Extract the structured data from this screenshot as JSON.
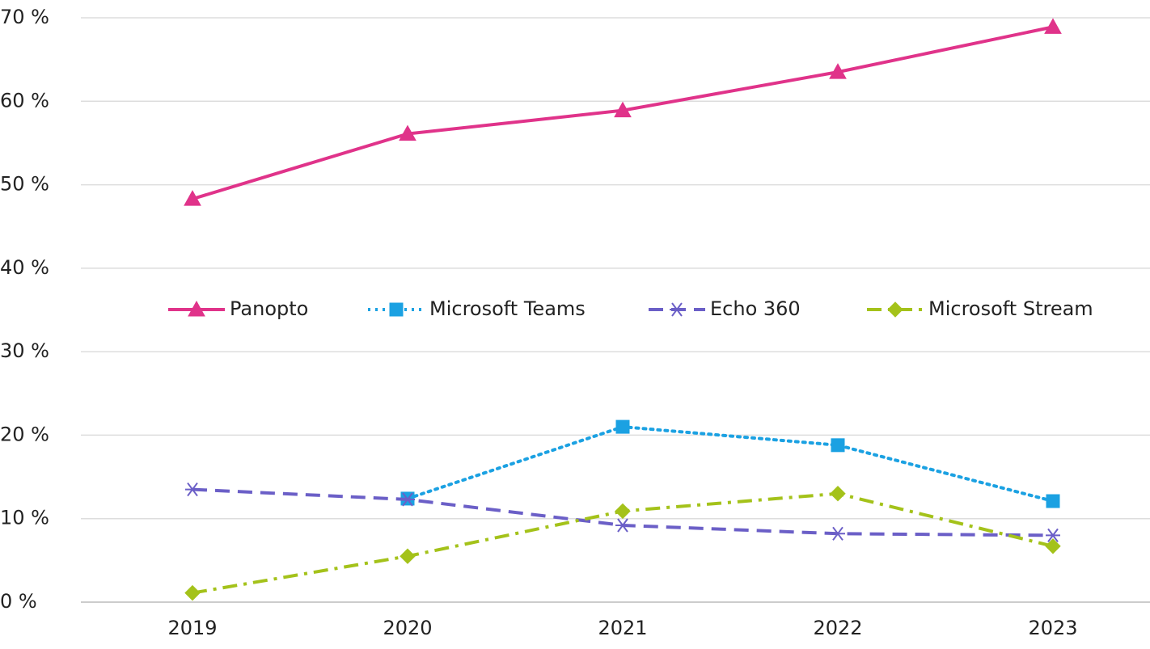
{
  "chart_data": {
    "type": "line",
    "categories": [
      "2019",
      "2020",
      "2021",
      "2022",
      "2023"
    ],
    "series": [
      {
        "name": "Panopto",
        "color": "#e0338a",
        "marker": "triangle",
        "line_style": "solid",
        "values": [
          48.3,
          56.1,
          58.9,
          63.5,
          68.9
        ]
      },
      {
        "name": "Microsoft Teams",
        "color": "#1ba1e2",
        "marker": "square",
        "line_style": "dotted",
        "values": [
          null,
          12.4,
          21.0,
          18.8,
          12.1
        ]
      },
      {
        "name": "Echo 360",
        "color": "#6b5fc7",
        "marker": "asterisk",
        "line_style": "dashed",
        "values": [
          13.5,
          12.3,
          9.2,
          8.2,
          8.0
        ]
      },
      {
        "name": "Microsoft Stream",
        "color": "#a4c21a",
        "marker": "diamond",
        "line_style": "dashdot",
        "values": [
          1.1,
          5.5,
          10.9,
          13.0,
          6.7
        ]
      }
    ],
    "ylim": [
      0,
      70
    ],
    "yticks": [
      {
        "value": 0,
        "label": "0 %"
      },
      {
        "value": 10,
        "label": "10 %"
      },
      {
        "value": 20,
        "label": "20 %"
      },
      {
        "value": 30,
        "label": "30 %"
      },
      {
        "value": 40,
        "label": "40 %"
      },
      {
        "value": 50,
        "label": "50 %"
      },
      {
        "value": 60,
        "label": "60 %"
      },
      {
        "value": 70,
        "label": "70 %"
      }
    ],
    "grid": true,
    "legend": "center"
  }
}
